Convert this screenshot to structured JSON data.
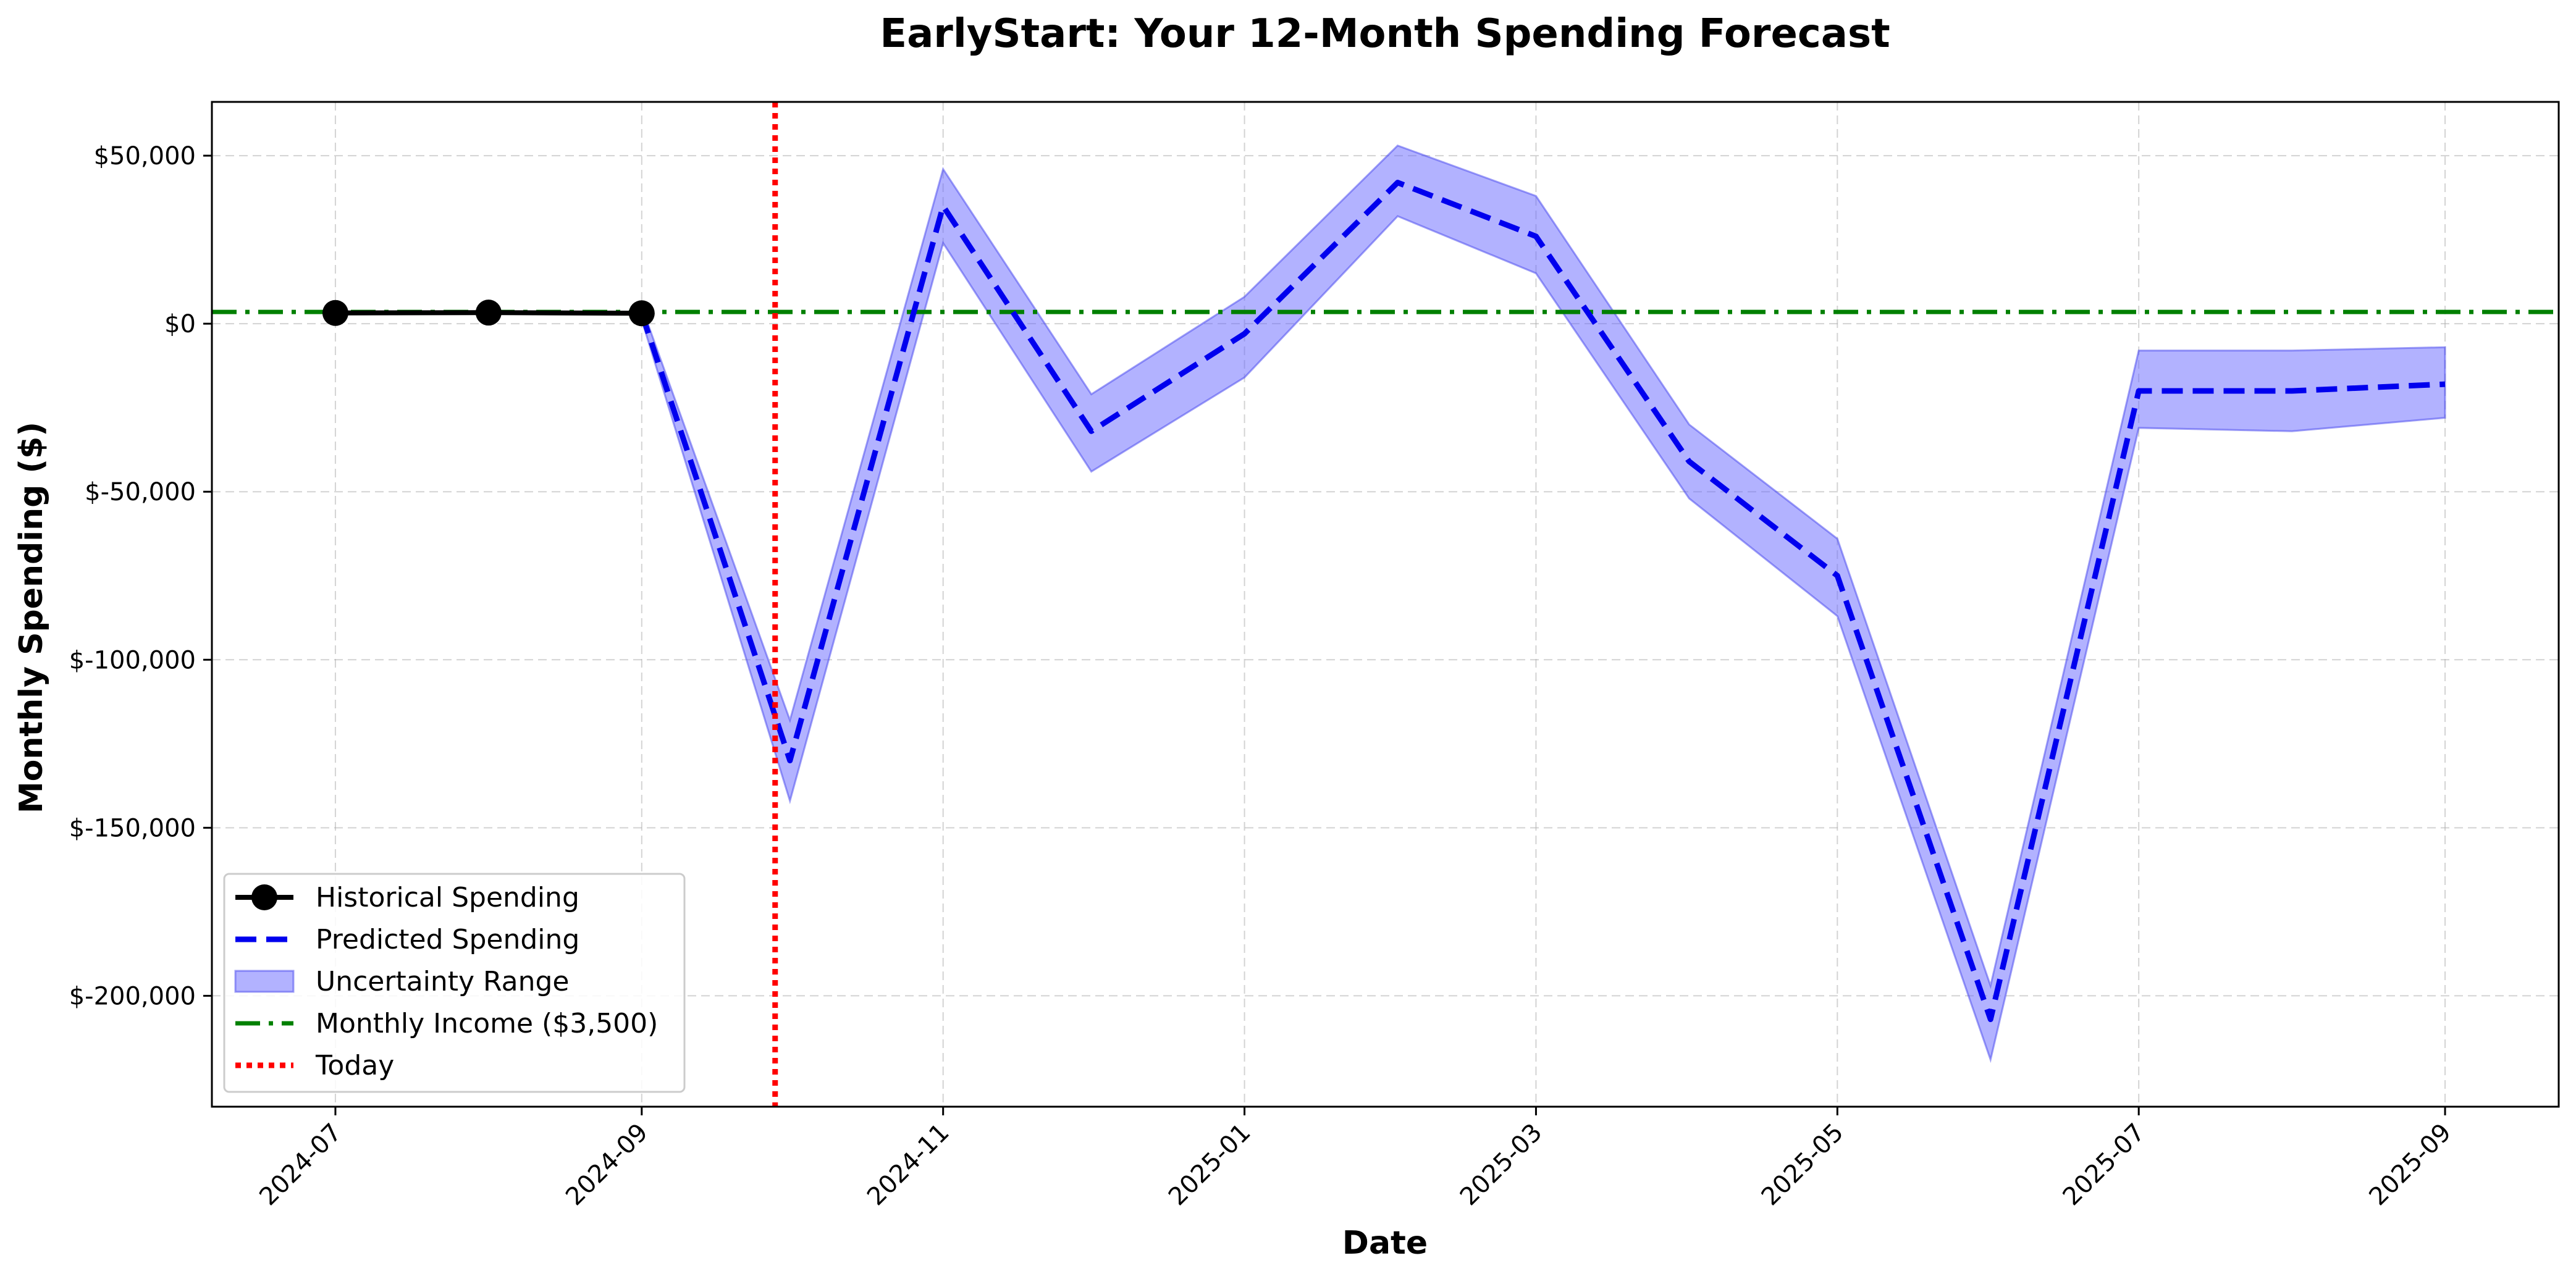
{
  "chart_data": {
    "type": "line",
    "title": "EarlyStart: Your 12-Month Spending Forecast",
    "xlabel": "Date",
    "ylabel": "Monthly Spending ($)",
    "xlim": [
      "2024-06-06",
      "2025-09-24"
    ],
    "ylim": [
      -233000,
      66000
    ],
    "x_ticks": [
      "2024-07-01",
      "2024-09-01",
      "2024-11-01",
      "2025-01-01",
      "2025-03-01",
      "2025-05-01",
      "2025-07-01",
      "2025-09-01"
    ],
    "x_tick_labels": [
      "2024-07",
      "2024-09",
      "2024-11",
      "2025-01",
      "2025-03",
      "2025-05",
      "2025-07",
      "2025-09"
    ],
    "y_ticks": [
      50000,
      0,
      -50000,
      -100000,
      -150000,
      -200000
    ],
    "y_tick_labels": [
      "$50,000",
      "$0",
      "$-50,000",
      "$-100,000",
      "$-150,000",
      "$-200,000"
    ],
    "grid": true,
    "legend_position": "lower-left",
    "series": [
      {
        "name": "Historical Spending",
        "style": "solid-markers",
        "color": "#000000",
        "x": [
          "2024-07-01",
          "2024-08-01",
          "2024-09-01"
        ],
        "y": [
          3200,
          3300,
          3100
        ]
      },
      {
        "name": "Predicted Spending",
        "style": "dashed",
        "color": "#0000ee",
        "x": [
          "2024-09-01",
          "2024-10-01",
          "2024-11-01",
          "2024-12-01",
          "2025-01-01",
          "2025-02-01",
          "2025-03-01",
          "2025-04-01",
          "2025-05-01",
          "2025-06-01",
          "2025-07-01",
          "2025-08-01",
          "2025-09-01"
        ],
        "y": [
          3100,
          -130000,
          35000,
          -32000,
          -3000,
          42000,
          26000,
          -41000,
          -75000,
          -207000,
          -20000,
          -20000,
          -18000
        ]
      },
      {
        "name": "Uncertainty Range",
        "style": "band",
        "color": "#6666ff",
        "x": [
          "2024-09-01",
          "2024-10-01",
          "2024-11-01",
          "2024-12-01",
          "2025-01-01",
          "2025-02-01",
          "2025-03-01",
          "2025-04-01",
          "2025-05-01",
          "2025-06-01",
          "2025-07-01",
          "2025-08-01",
          "2025-09-01"
        ],
        "lower": [
          1100,
          -142000,
          24000,
          -44000,
          -16000,
          32000,
          15000,
          -52000,
          -87000,
          -219000,
          -31000,
          -32000,
          -28000
        ],
        "upper": [
          5100,
          -118000,
          46000,
          -21000,
          8000,
          53000,
          38000,
          -30000,
          -64000,
          -197000,
          -8000,
          -8000,
          -7000
        ]
      },
      {
        "name": "Monthly Income ($3,500)",
        "style": "dashdot-hline",
        "color": "#008000",
        "y": 3500
      },
      {
        "name": "Today",
        "style": "dotted-vline",
        "color": "#ff0000",
        "x": "2024-09-28"
      }
    ]
  }
}
